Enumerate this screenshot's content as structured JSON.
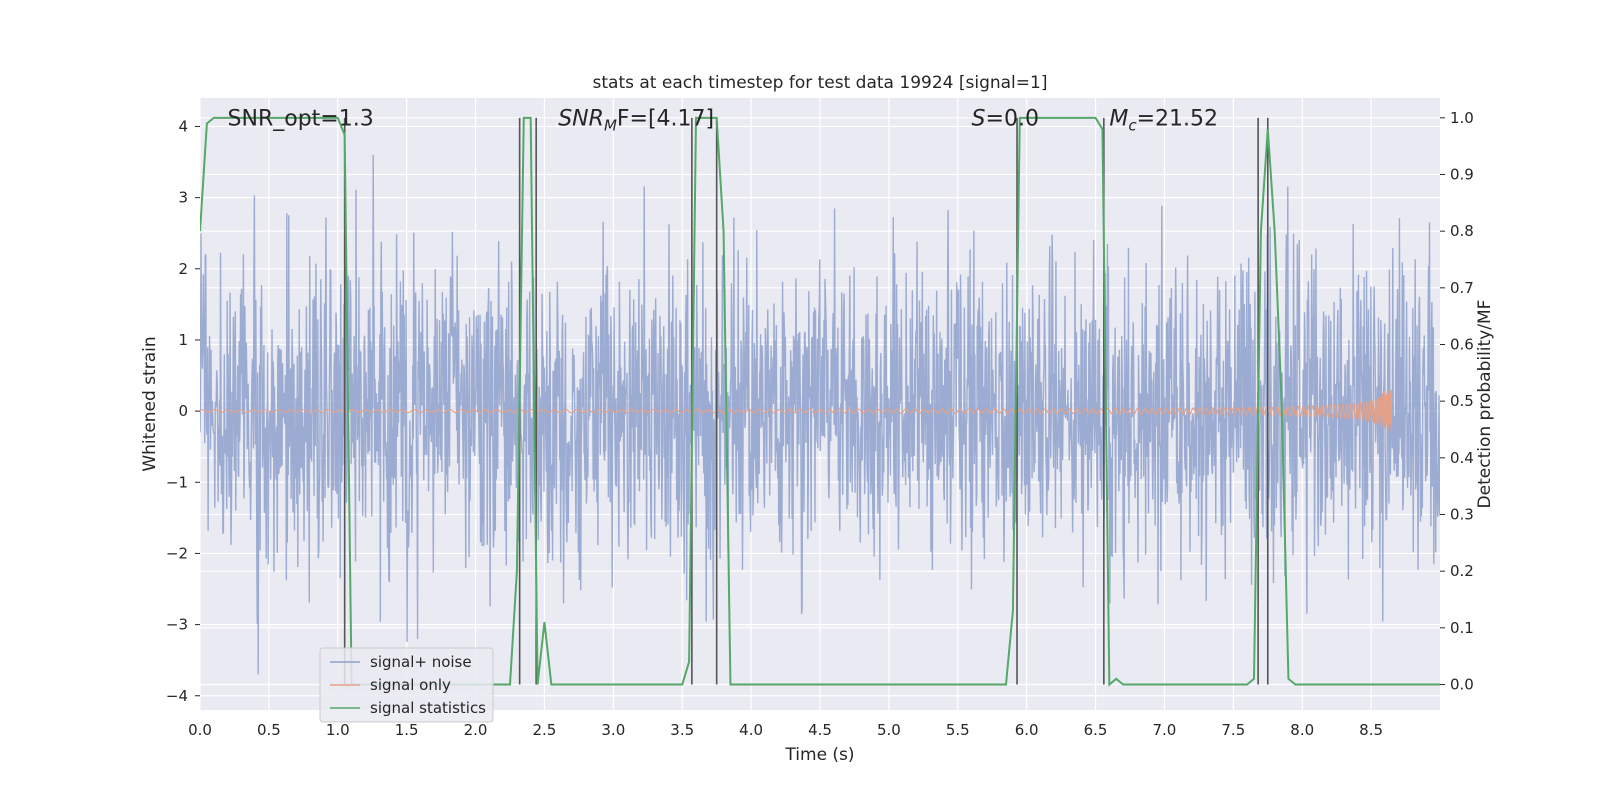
{
  "chart_data": {
    "type": "line",
    "title": "stats at each timestep for test data 19924 [signal=1]",
    "xlabel": "Time (s)",
    "ylabel": "Whitened strain",
    "y2label": "Detection probability/MF",
    "xlim": [
      0.0,
      9.0
    ],
    "ylim": [
      -4.2,
      4.4
    ],
    "y2lim": [
      -0.045,
      1.035
    ],
    "xticks": [
      0.0,
      0.5,
      1.0,
      1.5,
      2.0,
      2.5,
      3.0,
      3.5,
      4.0,
      4.5,
      5.0,
      5.5,
      6.0,
      6.5,
      7.0,
      7.5,
      8.0,
      8.5
    ],
    "xtick_labels": [
      "0.0",
      "0.5",
      "1.0",
      "1.5",
      "2.0",
      "2.5",
      "3.0",
      "3.5",
      "4.0",
      "4.5",
      "5.0",
      "5.5",
      "6.0",
      "6.5",
      "7.0",
      "7.5",
      "8.0",
      "8.5"
    ],
    "yticks": [
      -4,
      -3,
      -2,
      -1,
      0,
      1,
      2,
      3,
      4
    ],
    "ytick_labels": [
      "−4",
      "−3",
      "−2",
      "−1",
      "0",
      "1",
      "2",
      "3",
      "4"
    ],
    "y2ticks": [
      0.0,
      0.1,
      0.2,
      0.3,
      0.4,
      0.5,
      0.6,
      0.7,
      0.8,
      0.9,
      1.0
    ],
    "y2tick_labels": [
      "0.0",
      "0.1",
      "0.2",
      "0.3",
      "0.4",
      "0.5",
      "0.6",
      "0.7",
      "0.8",
      "0.9",
      "1.0"
    ],
    "grid": true,
    "legend_position": "lower-left",
    "annotations": [
      {
        "text": "SNR_opt=1.3",
        "x": 0.2,
        "y": 4.1
      },
      {
        "text": "SNR",
        "sub": "M",
        "suffix": "F=[4.17]",
        "x": 2.6,
        "y": 4.1
      },
      {
        "text": "S",
        "suffix": "=0.0",
        "x": 5.6,
        "y": 4.1
      },
      {
        "text": "M",
        "sub": "c",
        "suffix": "=21.52",
        "x": 6.6,
        "y": 4.1
      }
    ],
    "series": [
      {
        "name": "signal+ noise",
        "color": "#8da0cb",
        "kind": "noise",
        "amplitude_std": 1.0,
        "peak_range": [
          -3.7,
          3.6
        ]
      },
      {
        "name": "signal only",
        "color": "#e5a188",
        "kind": "chirp",
        "x_start": 0.0,
        "x_merger": 8.65,
        "max_amplitude": 0.32
      },
      {
        "name": "signal statistics",
        "color": "#55a868",
        "axis": "right",
        "x": [
          0.0,
          0.05,
          0.1,
          1.0,
          1.05,
          1.1,
          1.15,
          2.2,
          2.25,
          2.3,
          2.35,
          2.4,
          2.45,
          2.5,
          2.55,
          2.6,
          3.5,
          3.55,
          3.6,
          3.65,
          3.75,
          3.8,
          3.85,
          3.9,
          5.85,
          5.9,
          5.95,
          6.0,
          6.5,
          6.55,
          6.6,
          6.65,
          6.7,
          7.6,
          7.65,
          7.7,
          7.75,
          7.8,
          7.85,
          7.9,
          7.95,
          8.0,
          9.0
        ],
        "y": [
          0.8,
          0.99,
          1.0,
          1.0,
          0.97,
          0.0,
          0.0,
          0.0,
          0.0,
          0.2,
          1.0,
          1.0,
          0.0,
          0.11,
          0.0,
          0.0,
          0.0,
          0.04,
          1.0,
          1.0,
          1.0,
          0.8,
          0.0,
          0.0,
          0.0,
          0.13,
          1.0,
          1.0,
          1.0,
          0.98,
          0.0,
          0.01,
          0.0,
          0.0,
          0.01,
          0.8,
          0.98,
          0.8,
          0.5,
          0.01,
          0.0,
          0.0,
          0.0
        ]
      }
    ],
    "vlines": {
      "color": "#555555",
      "x": [
        1.05,
        2.32,
        2.44,
        3.57,
        3.75,
        5.93,
        6.56,
        7.68,
        7.75
      ]
    }
  }
}
